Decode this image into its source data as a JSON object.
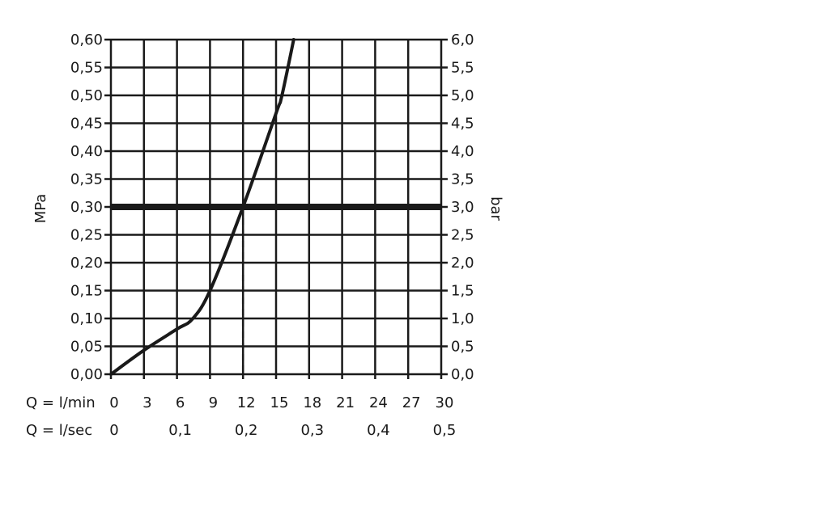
{
  "chart_data": {
    "type": "line",
    "title": "",
    "ylabel_left": "MPa",
    "ylabel_right": "bar",
    "xlabel_rows": [
      {
        "label": "Q = l/min",
        "ticks": [
          "0",
          "3",
          "6",
          "9",
          "12",
          "15",
          "18",
          "21",
          "24",
          "27",
          "30"
        ],
        "tick_values": [
          0,
          3,
          6,
          9,
          12,
          15,
          18,
          21,
          24,
          27,
          30
        ]
      },
      {
        "label": "Q = l/sec",
        "ticks": [
          "0",
          "0,1",
          "0,2",
          "0,3",
          "0,4",
          "0,5"
        ],
        "tick_values": [
          0,
          6,
          12,
          18,
          24,
          30
        ]
      }
    ],
    "xlim": [
      0,
      30
    ],
    "ylim": [
      0,
      0.6
    ],
    "yticks_left": [
      "0,00",
      "0,05",
      "0,10",
      "0,15",
      "0,20",
      "0,25",
      "0,30",
      "0,35",
      "0,40",
      "0,45",
      "0,50",
      "0,55",
      "0,60"
    ],
    "yticks_right": [
      "0,0",
      "0,5",
      "1,0",
      "1,5",
      "2,0",
      "2,5",
      "3,0",
      "3,5",
      "4,0",
      "4,5",
      "5,0",
      "5,5",
      "6,0"
    ],
    "grid": true,
    "series": [
      {
        "x": [
          0,
          3,
          6,
          7.4,
          9,
          12,
          15,
          15.5,
          16.6
        ],
        "y": [
          0,
          0.043,
          0.081,
          0.099,
          0.15,
          0.3,
          0.468,
          0.497,
          0.6
        ]
      }
    ],
    "reference_line_y": 0.3,
    "reference_drop_x": 12,
    "colors": {
      "line": "#1a1a1a",
      "grid": "#1a1a1a"
    }
  }
}
